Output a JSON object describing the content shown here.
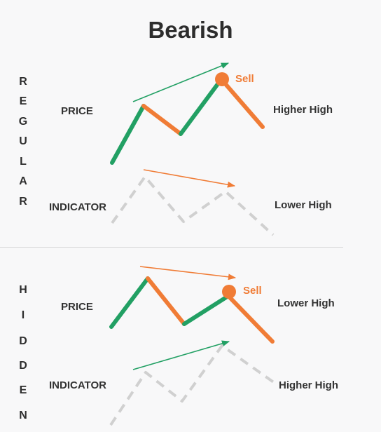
{
  "title": "Bearish",
  "regular": {
    "letters": [
      "R",
      "E",
      "G",
      "U",
      "L",
      "A",
      "R"
    ],
    "price_label": "PRICE",
    "indicator_label": "INDICATOR",
    "price_note": "Higher High",
    "indicator_note": "Lower High",
    "signal": "Sell"
  },
  "hidden": {
    "letters": [
      "H",
      "I",
      "D",
      "D",
      "E",
      "N"
    ],
    "price_label": "PRICE",
    "indicator_label": "INDICATOR",
    "price_note": "Lower High",
    "indicator_note": "Higher High",
    "signal": "Sell"
  },
  "colors": {
    "green": "#22a064",
    "orange": "#f07c36",
    "gray_dash": "#d0d0d0"
  }
}
